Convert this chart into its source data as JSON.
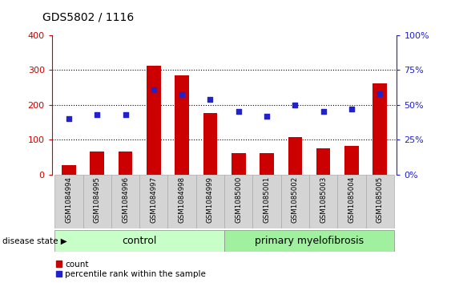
{
  "title": "GDS5802 / 1116",
  "samples": [
    "GSM1084994",
    "GSM1084995",
    "GSM1084996",
    "GSM1084997",
    "GSM1084998",
    "GSM1084999",
    "GSM1085000",
    "GSM1085001",
    "GSM1085002",
    "GSM1085003",
    "GSM1085004",
    "GSM1085005"
  ],
  "counts": [
    27,
    65,
    65,
    312,
    285,
    176,
    62,
    62,
    107,
    75,
    82,
    262
  ],
  "percentile_ranks_pct": [
    40,
    43,
    43,
    61,
    57,
    54,
    45,
    42,
    50,
    45,
    47,
    58
  ],
  "ylim_left": [
    0,
    400
  ],
  "ylim_right": [
    0,
    100
  ],
  "yticks_left": [
    0,
    100,
    200,
    300,
    400
  ],
  "yticks_right": [
    0,
    25,
    50,
    75,
    100
  ],
  "bar_color": "#cc0000",
  "dot_color": "#2222cc",
  "control_label": "control",
  "disease_label": "primary myelofibrosis",
  "disease_state_label": "disease state",
  "legend_bar_label": "count",
  "legend_dot_label": "percentile rank within the sample",
  "left_axis_color": "#cc0000",
  "right_axis_color": "#2222cc",
  "tick_bg_color": "#d4d4d4",
  "control_bg": "#c8ffc8",
  "disease_bg": "#a0f0a0",
  "grid_color": "#000000",
  "dotted_grid_values": [
    100,
    200,
    300
  ],
  "n_control": 6,
  "n_disease": 6
}
